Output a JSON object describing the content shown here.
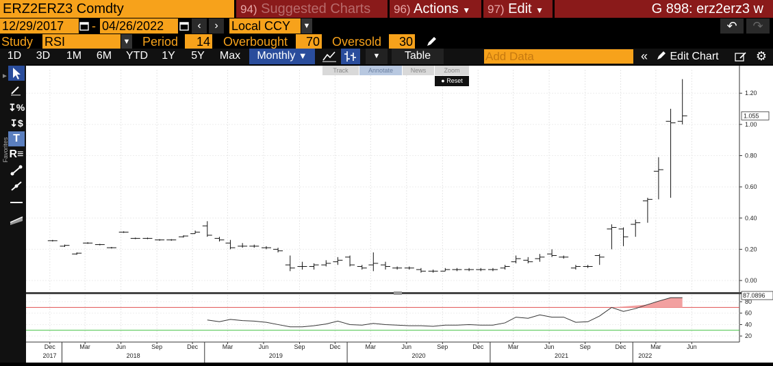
{
  "header": {
    "ticker": "ERZ2ERZ3 Comdty",
    "suggested": {
      "num": "94)",
      "label": "Suggested Charts"
    },
    "actions": {
      "num": "96)",
      "label": "Actions"
    },
    "edit": {
      "num": "97)",
      "label": "Edit"
    },
    "function_code": "G 898: erz2erz3 w"
  },
  "dates": {
    "start": "12/29/2017",
    "end": "04/26/2022",
    "currency": "Local CCY",
    "separator": "-"
  },
  "study": {
    "label": "Study",
    "value": "RSI",
    "period_label": "Period",
    "period": "14",
    "overbought_label": "Overbought",
    "overbought": "70",
    "oversold_label": "Oversold",
    "oversold": "30"
  },
  "ranges": [
    "1D",
    "3D",
    "1M",
    "6M",
    "YTD",
    "1Y",
    "5Y",
    "Max"
  ],
  "frequency": "Monthly",
  "table_label": "Table",
  "add_data_placeholder": "Add Data",
  "edit_chart_label": "Edit Chart",
  "chart_controls": {
    "track": "Track",
    "annotate": "Annotate",
    "news": "News",
    "zoom": "Zoom",
    "reset": "Reset"
  },
  "favorites_label": "Favorites",
  "colors": {
    "amber": "#f7a21b",
    "maroon": "#8a1a1a",
    "selected_blue": "#2a4d9c",
    "overbought_line": "#e05050",
    "oversold_line": "#40c040"
  },
  "chart_data": [
    {
      "type": "ohlc",
      "ylim": [
        -0.07,
        1.35
      ],
      "yticks": [
        0.0,
        0.2,
        0.4,
        0.6,
        0.8,
        1.0,
        1.2
      ],
      "ytick_labels": [
        "0.00",
        "0.20",
        "0.40",
        "0.60",
        "0.80",
        "1.00",
        "1.20"
      ],
      "last_value": 1.055,
      "last_label": "1.055",
      "xlim": [
        "2017-10-01",
        "2022-10-01"
      ],
      "x_month_ticks": [
        "2017-12",
        "2018-03",
        "2018-06",
        "2018-09",
        "2018-12",
        "2019-03",
        "2019-06",
        "2019-09",
        "2019-12",
        "2020-03",
        "2020-06",
        "2020-09",
        "2020-12",
        "2021-03",
        "2021-06",
        "2021-09",
        "2021-12",
        "2022-03",
        "2022-06"
      ],
      "x_month_labels": [
        "Dec",
        "Mar",
        "Jun",
        "Sep",
        "Dec",
        "Mar",
        "Jun",
        "Sep",
        "Dec",
        "Mar",
        "Jun",
        "Sep",
        "Dec",
        "Mar",
        "Jun",
        "Sep",
        "Dec",
        "Mar",
        "Jun"
      ],
      "x_year_ticks": [
        "2018-01",
        "2019-01",
        "2020-01",
        "2021-01",
        "2022-01"
      ],
      "x_year_labels": [
        "2017",
        "2018",
        "2019",
        "2020",
        "2021",
        "2022"
      ],
      "bars": [
        {
          "date": "2017-12",
          "o": 0.255,
          "h": 0.26,
          "l": 0.25,
          "c": 0.255
        },
        {
          "date": "2018-01",
          "o": 0.22,
          "h": 0.23,
          "l": 0.215,
          "c": 0.225
        },
        {
          "date": "2018-02",
          "o": 0.17,
          "h": 0.18,
          "l": 0.165,
          "c": 0.175
        },
        {
          "date": "2018-03",
          "o": 0.24,
          "h": 0.245,
          "l": 0.235,
          "c": 0.24
        },
        {
          "date": "2018-04",
          "o": 0.23,
          "h": 0.235,
          "l": 0.225,
          "c": 0.23
        },
        {
          "date": "2018-05",
          "o": 0.21,
          "h": 0.215,
          "l": 0.205,
          "c": 0.21
        },
        {
          "date": "2018-06",
          "o": 0.31,
          "h": 0.315,
          "l": 0.305,
          "c": 0.31
        },
        {
          "date": "2018-07",
          "o": 0.27,
          "h": 0.275,
          "l": 0.265,
          "c": 0.27
        },
        {
          "date": "2018-08",
          "o": 0.27,
          "h": 0.275,
          "l": 0.265,
          "c": 0.27
        },
        {
          "date": "2018-09",
          "o": 0.26,
          "h": 0.265,
          "l": 0.255,
          "c": 0.26
        },
        {
          "date": "2018-10",
          "o": 0.26,
          "h": 0.265,
          "l": 0.255,
          "c": 0.26
        },
        {
          "date": "2018-11",
          "o": 0.28,
          "h": 0.29,
          "l": 0.275,
          "c": 0.285
        },
        {
          "date": "2018-12",
          "o": 0.3,
          "h": 0.32,
          "l": 0.3,
          "c": 0.31
        },
        {
          "date": "2019-01",
          "o": 0.35,
          "h": 0.38,
          "l": 0.28,
          "c": 0.29
        },
        {
          "date": "2019-02",
          "o": 0.27,
          "h": 0.28,
          "l": 0.25,
          "c": 0.26
        },
        {
          "date": "2019-03",
          "o": 0.24,
          "h": 0.26,
          "l": 0.2,
          "c": 0.21
        },
        {
          "date": "2019-04",
          "o": 0.22,
          "h": 0.24,
          "l": 0.21,
          "c": 0.22
        },
        {
          "date": "2019-05",
          "o": 0.22,
          "h": 0.23,
          "l": 0.21,
          "c": 0.22
        },
        {
          "date": "2019-06",
          "o": 0.21,
          "h": 0.22,
          "l": 0.2,
          "c": 0.21
        },
        {
          "date": "2019-07",
          "o": 0.2,
          "h": 0.21,
          "l": 0.18,
          "c": 0.19
        },
        {
          "date": "2019-08",
          "o": 0.1,
          "h": 0.16,
          "l": 0.06,
          "c": 0.08
        },
        {
          "date": "2019-09",
          "o": 0.09,
          "h": 0.12,
          "l": 0.07,
          "c": 0.09
        },
        {
          "date": "2019-10",
          "o": 0.09,
          "h": 0.11,
          "l": 0.07,
          "c": 0.1
        },
        {
          "date": "2019-11",
          "o": 0.1,
          "h": 0.13,
          "l": 0.09,
          "c": 0.11
        },
        {
          "date": "2019-12",
          "o": 0.12,
          "h": 0.15,
          "l": 0.1,
          "c": 0.13
        },
        {
          "date": "2020-01",
          "o": 0.15,
          "h": 0.16,
          "l": 0.09,
          "c": 0.1
        },
        {
          "date": "2020-02",
          "o": 0.09,
          "h": 0.1,
          "l": 0.07,
          "c": 0.08
        },
        {
          "date": "2020-03",
          "o": 0.1,
          "h": 0.18,
          "l": 0.06,
          "c": 0.11
        },
        {
          "date": "2020-04",
          "o": 0.1,
          "h": 0.12,
          "l": 0.07,
          "c": 0.09
        },
        {
          "date": "2020-05",
          "o": 0.08,
          "h": 0.09,
          "l": 0.07,
          "c": 0.08
        },
        {
          "date": "2020-06",
          "o": 0.08,
          "h": 0.09,
          "l": 0.07,
          "c": 0.08
        },
        {
          "date": "2020-07",
          "o": 0.07,
          "h": 0.08,
          "l": 0.05,
          "c": 0.06
        },
        {
          "date": "2020-08",
          "o": 0.06,
          "h": 0.07,
          "l": 0.05,
          "c": 0.06
        },
        {
          "date": "2020-09",
          "o": 0.06,
          "h": 0.08,
          "l": 0.06,
          "c": 0.07
        },
        {
          "date": "2020-10",
          "o": 0.07,
          "h": 0.08,
          "l": 0.06,
          "c": 0.07
        },
        {
          "date": "2020-11",
          "o": 0.07,
          "h": 0.08,
          "l": 0.06,
          "c": 0.07
        },
        {
          "date": "2020-12",
          "o": 0.07,
          "h": 0.08,
          "l": 0.06,
          "c": 0.07
        },
        {
          "date": "2021-01",
          "o": 0.07,
          "h": 0.08,
          "l": 0.06,
          "c": 0.07
        },
        {
          "date": "2021-02",
          "o": 0.08,
          "h": 0.1,
          "l": 0.07,
          "c": 0.09
        },
        {
          "date": "2021-03",
          "o": 0.12,
          "h": 0.16,
          "l": 0.11,
          "c": 0.14
        },
        {
          "date": "2021-04",
          "o": 0.13,
          "h": 0.15,
          "l": 0.11,
          "c": 0.12
        },
        {
          "date": "2021-05",
          "o": 0.14,
          "h": 0.17,
          "l": 0.12,
          "c": 0.15
        },
        {
          "date": "2021-06",
          "o": 0.17,
          "h": 0.2,
          "l": 0.15,
          "c": 0.16
        },
        {
          "date": "2021-07",
          "o": 0.15,
          "h": 0.16,
          "l": 0.14,
          "c": 0.15
        },
        {
          "date": "2021-08",
          "o": 0.08,
          "h": 0.1,
          "l": 0.07,
          "c": 0.09
        },
        {
          "date": "2021-09",
          "o": 0.09,
          "h": 0.1,
          "l": 0.08,
          "c": 0.09
        },
        {
          "date": "2021-10",
          "o": 0.16,
          "h": 0.17,
          "l": 0.1,
          "c": 0.15
        },
        {
          "date": "2021-11",
          "o": 0.33,
          "h": 0.36,
          "l": 0.2,
          "c": 0.34
        },
        {
          "date": "2021-12",
          "o": 0.33,
          "h": 0.34,
          "l": 0.22,
          "c": 0.28
        },
        {
          "date": "2022-01",
          "o": 0.36,
          "h": 0.39,
          "l": 0.28,
          "c": 0.37
        },
        {
          "date": "2022-02",
          "o": 0.51,
          "h": 0.53,
          "l": 0.37,
          "c": 0.52
        },
        {
          "date": "2022-03",
          "o": 0.7,
          "h": 0.79,
          "l": 0.52,
          "c": 0.71
        },
        {
          "date": "2022-04",
          "o": 1.02,
          "h": 1.1,
          "l": 0.53,
          "c": 1.01
        },
        {
          "date": "2022-05",
          "o": 1.02,
          "h": 1.29,
          "l": 1.0,
          "c": 1.055
        }
      ]
    },
    {
      "type": "line",
      "name": "RSI",
      "ylim": [
        13,
        92
      ],
      "yticks": [
        20,
        40,
        60,
        80
      ],
      "ytick_labels": [
        "20",
        "40",
        "60",
        "80"
      ],
      "overbought": 70,
      "oversold": 30,
      "last_label": "87.0896",
      "x": [
        "2019-01",
        "2019-02",
        "2019-03",
        "2019-04",
        "2019-05",
        "2019-06",
        "2019-07",
        "2019-08",
        "2019-09",
        "2019-10",
        "2019-11",
        "2019-12",
        "2020-01",
        "2020-02",
        "2020-03",
        "2020-04",
        "2020-05",
        "2020-06",
        "2020-07",
        "2020-08",
        "2020-09",
        "2020-10",
        "2020-11",
        "2020-12",
        "2021-01",
        "2021-02",
        "2021-03",
        "2021-04",
        "2021-05",
        "2021-06",
        "2021-07",
        "2021-08",
        "2021-09",
        "2021-10",
        "2021-11",
        "2021-12",
        "2022-01",
        "2022-02",
        "2022-03",
        "2022-04",
        "2022-05"
      ],
      "values": [
        48,
        45,
        49,
        47,
        46,
        44,
        40,
        36,
        36,
        38,
        41,
        46,
        40,
        39,
        42,
        40,
        39,
        38,
        38,
        37,
        39,
        39,
        40,
        39,
        39,
        43,
        53,
        51,
        57,
        53,
        53,
        44,
        45,
        55,
        70,
        63,
        68,
        75,
        81,
        87,
        87.09
      ]
    }
  ]
}
